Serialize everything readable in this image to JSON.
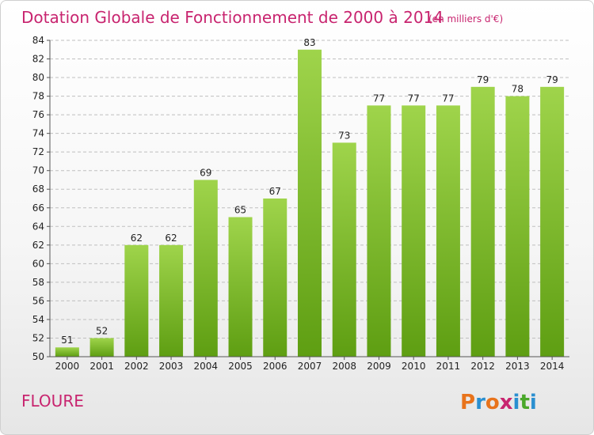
{
  "header": {
    "title": "Dotation Globale de Fonctionnement de 2000 à 2014",
    "unit": "(en milliers d'€)"
  },
  "footer": {
    "commune": "FLOURE",
    "brand": {
      "name": "Proxiti",
      "letters": [
        "P",
        "r",
        "o",
        "x",
        "i",
        "t",
        "i"
      ]
    }
  },
  "colors": {
    "title": "#c8246f",
    "bar_top": "#9fd44b",
    "bar_bottom": "#5e9e12",
    "grid": "#bfbfbf",
    "brand_letters": [
      "#e8731b",
      "#2a8fd0",
      "#e8731b",
      "#c8246f",
      "#2a8fd0",
      "#4aa82a",
      "#2a8fd0"
    ]
  },
  "chart_data": {
    "type": "bar",
    "title": "Dotation Globale de Fonctionnement de 2000 à 2014",
    "subtitle": "(en milliers d'€)",
    "categories": [
      "2000",
      "2001",
      "2002",
      "2003",
      "2004",
      "2005",
      "2006",
      "2007",
      "2008",
      "2009",
      "2010",
      "2011",
      "2012",
      "2013",
      "2014"
    ],
    "values": [
      51,
      52,
      62,
      62,
      69,
      65,
      67,
      83,
      73,
      77,
      77,
      77,
      79,
      78,
      79
    ],
    "ylim": [
      50,
      84
    ],
    "yticks": [
      50,
      52,
      54,
      56,
      58,
      60,
      62,
      64,
      66,
      68,
      70,
      72,
      74,
      76,
      78,
      80,
      82,
      84
    ],
    "grid": true,
    "data_labels": true
  }
}
